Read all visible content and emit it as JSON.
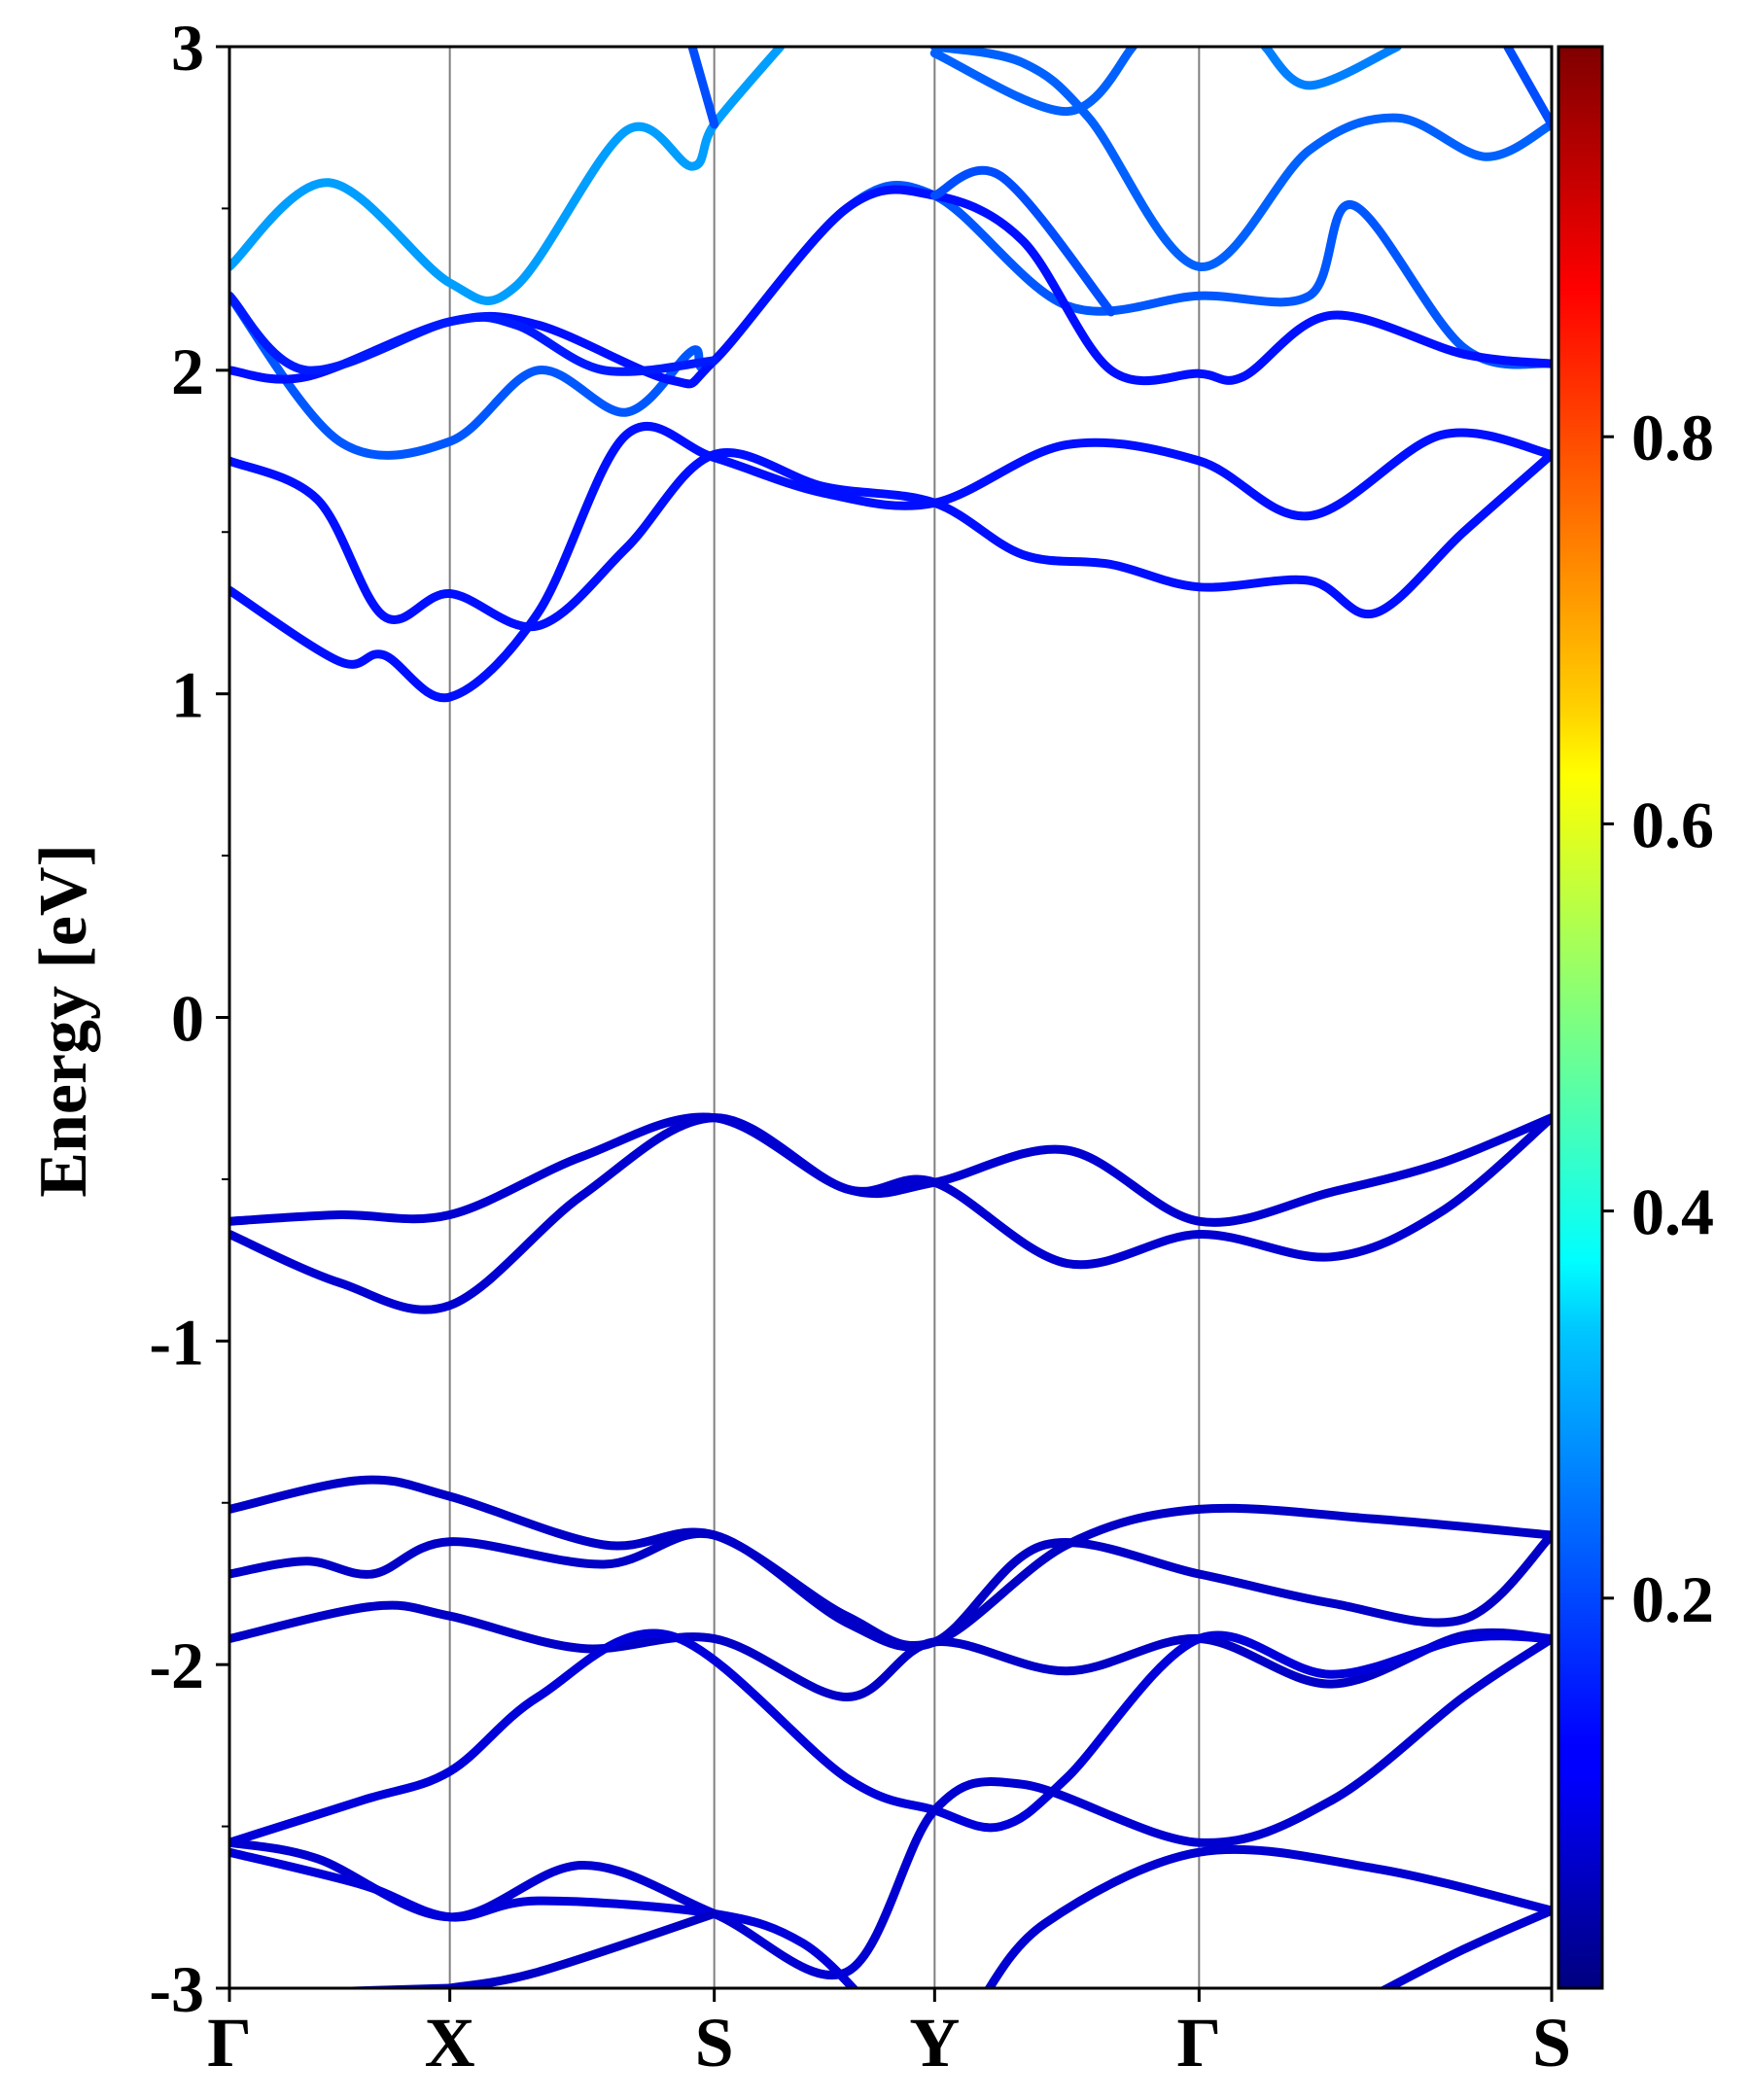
{
  "chart_data": {
    "type": "line",
    "ylabel": "Energy [eV]",
    "xlabel": "",
    "ylim": [
      -3,
      3
    ],
    "grid": false,
    "k_points": [
      {
        "label": "Γ",
        "k": 0
      },
      {
        "label": "X",
        "k": 1
      },
      {
        "label": "S",
        "k": 2.2
      },
      {
        "label": "Y",
        "k": 3.2
      },
      {
        "label": "Γ",
        "k": 4.4
      },
      {
        "label": "S",
        "k": 6
      }
    ],
    "y_ticks": [
      {
        "value": 3,
        "label": "3"
      },
      {
        "value": 2,
        "label": "2"
      },
      {
        "value": 1,
        "label": "1"
      },
      {
        "value": 0,
        "label": "0"
      },
      {
        "value": -1,
        "label": "-1"
      },
      {
        "value": -2,
        "label": "-2"
      },
      {
        "value": -3,
        "label": "-3"
      }
    ],
    "colorbar": {
      "colormap": "jet",
      "range": [
        0,
        1
      ],
      "ticks": [
        {
          "value": 0.2,
          "label": "0.2"
        },
        {
          "value": 0.4,
          "label": "0.4"
        },
        {
          "value": 0.6,
          "label": "0.6"
        },
        {
          "value": 0.8,
          "label": "0.8"
        }
      ]
    },
    "series": [
      {
        "weight": 0.08,
        "points": [
          [
            0,
            -0.63
          ],
          [
            0.5,
            -0.61
          ],
          [
            1,
            -0.61
          ],
          [
            1.6,
            -0.43
          ],
          [
            2.2,
            -0.31
          ],
          [
            2.8,
            -0.53
          ],
          [
            3.2,
            -0.51
          ],
          [
            3.8,
            -0.41
          ],
          [
            4.4,
            -0.63
          ],
          [
            5,
            -0.54
          ],
          [
            5.5,
            -0.45
          ],
          [
            6,
            -0.31
          ]
        ]
      },
      {
        "weight": 0.08,
        "points": [
          [
            0,
            -0.67
          ],
          [
            0.5,
            -0.82
          ],
          [
            1,
            -0.89
          ],
          [
            1.6,
            -0.55
          ],
          [
            2.2,
            -0.31
          ],
          [
            2.8,
            -0.53
          ],
          [
            3.2,
            -0.51
          ],
          [
            3.8,
            -0.76
          ],
          [
            4.4,
            -0.67
          ],
          [
            5,
            -0.74
          ],
          [
            5.5,
            -0.6
          ],
          [
            6,
            -0.31
          ]
        ]
      },
      {
        "weight": 0.07,
        "points": [
          [
            0,
            -1.52
          ],
          [
            0.6,
            -1.43
          ],
          [
            1,
            -1.48
          ],
          [
            1.7,
            -1.63
          ],
          [
            2.2,
            -1.6
          ],
          [
            2.8,
            -1.85
          ],
          [
            3.2,
            -1.93
          ],
          [
            3.8,
            -1.63
          ],
          [
            4.4,
            -1.52
          ],
          [
            5.2,
            -1.55
          ],
          [
            6,
            -1.6
          ]
        ]
      },
      {
        "weight": 0.07,
        "points": [
          [
            0,
            -1.72
          ],
          [
            0.35,
            -1.68
          ],
          [
            0.65,
            -1.72
          ],
          [
            1,
            -1.62
          ],
          [
            1.7,
            -1.69
          ],
          [
            2.2,
            -1.6
          ],
          [
            2.8,
            -1.87
          ],
          [
            3.2,
            -1.93
          ],
          [
            3.7,
            -1.63
          ],
          [
            4.4,
            -1.72
          ],
          [
            5,
            -1.81
          ],
          [
            5.6,
            -1.86
          ],
          [
            6,
            -1.6
          ]
        ]
      },
      {
        "weight": 0.07,
        "points": [
          [
            0,
            -1.92
          ],
          [
            0.65,
            -1.82
          ],
          [
            1,
            -1.85
          ],
          [
            1.6,
            -1.95
          ],
          [
            2.2,
            -1.92
          ],
          [
            2.8,
            -2.1
          ],
          [
            3.2,
            -1.93
          ],
          [
            3.8,
            -2.02
          ],
          [
            4.4,
            -1.92
          ],
          [
            5,
            -2.06
          ],
          [
            5.6,
            -1.91
          ],
          [
            6,
            -1.92
          ]
        ]
      },
      {
        "weight": 0.09,
        "points": [
          [
            0,
            -2.55
          ],
          [
            0.6,
            -2.42
          ],
          [
            1,
            -2.33
          ],
          [
            1.4,
            -2.1
          ],
          [
            2,
            -1.91
          ],
          [
            2.8,
            -2.35
          ],
          [
            3.2,
            -2.45
          ],
          [
            3.5,
            -2.5
          ],
          [
            3.8,
            -2.35
          ],
          [
            4.4,
            -1.92
          ],
          [
            5,
            -2.03
          ],
          [
            5.6,
            -1.92
          ],
          [
            6,
            -1.92
          ]
        ]
      },
      {
        "weight": 0.08,
        "points": [
          [
            0,
            -2.55
          ],
          [
            0.4,
            -2.6
          ],
          [
            1,
            -2.78
          ],
          [
            1.6,
            -2.62
          ],
          [
            2.2,
            -2.77
          ],
          [
            2.8,
            -2.95
          ],
          [
            3.2,
            -2.45
          ],
          [
            3.6,
            -2.37
          ],
          [
            4.4,
            -2.55
          ],
          [
            5,
            -2.42
          ],
          [
            5.6,
            -2.1
          ],
          [
            6,
            -1.92
          ]
        ]
      },
      {
        "weight": 0.09,
        "points": [
          [
            0,
            -2.58
          ],
          [
            0.6,
            -2.68
          ],
          [
            1,
            -2.78
          ],
          [
            1.4,
            -2.73
          ],
          [
            2.2,
            -2.77
          ],
          [
            2.6,
            -2.86
          ],
          [
            2.9,
            -3.05
          ]
        ]
      },
      {
        "weight": 0.08,
        "points": [
          [
            3.4,
            -3.05
          ],
          [
            3.7,
            -2.8
          ],
          [
            4.4,
            -2.58
          ],
          [
            5.2,
            -2.63
          ],
          [
            6,
            -2.76
          ]
        ]
      },
      {
        "weight": 0.07,
        "points": [
          [
            1,
            -3.0
          ],
          [
            1.4,
            -2.95
          ],
          [
            2.2,
            -2.77
          ]
        ]
      },
      {
        "weight": 0.07,
        "points": [
          [
            0,
            -3.02
          ],
          [
            1,
            -3.0
          ]
        ]
      },
      {
        "weight": 0.08,
        "points": [
          [
            5.2,
            -3.02
          ],
          [
            5.6,
            -2.88
          ],
          [
            6,
            -2.76
          ]
        ]
      },
      {
        "weight": 0.14,
        "points": [
          [
            0,
            1.32
          ],
          [
            0.5,
            1.1
          ],
          [
            0.7,
            1.12
          ],
          [
            1,
            0.99
          ],
          [
            1.4,
            1.25
          ],
          [
            1.8,
            1.8
          ],
          [
            2.2,
            1.73
          ],
          [
            2.7,
            1.62
          ],
          [
            3.2,
            1.59
          ],
          [
            3.8,
            1.77
          ],
          [
            4.4,
            1.72
          ],
          [
            4.9,
            1.55
          ],
          [
            5.5,
            1.8
          ],
          [
            6,
            1.74
          ]
        ]
      },
      {
        "weight": 0.14,
        "points": [
          [
            0,
            1.72
          ],
          [
            0.4,
            1.6
          ],
          [
            0.7,
            1.24
          ],
          [
            1,
            1.31
          ],
          [
            1.4,
            1.21
          ],
          [
            1.8,
            1.45
          ],
          [
            2.2,
            1.74
          ],
          [
            2.7,
            1.64
          ],
          [
            3.2,
            1.59
          ],
          [
            3.6,
            1.43
          ],
          [
            4,
            1.4
          ],
          [
            4.4,
            1.33
          ],
          [
            4.9,
            1.35
          ],
          [
            5.2,
            1.25
          ],
          [
            5.6,
            1.5
          ],
          [
            6,
            1.74
          ]
        ]
      },
      {
        "weight": 0.21,
        "points": [
          [
            0,
            2.23
          ],
          [
            0.5,
            1.78
          ],
          [
            1,
            1.78
          ],
          [
            1.4,
            2.0
          ],
          [
            1.8,
            1.87
          ],
          [
            2.1,
            2.06
          ],
          [
            2.2,
            2.03
          ],
          [
            2.8,
            2.5
          ],
          [
            3.2,
            2.54
          ],
          [
            3.8,
            2.2
          ],
          [
            4.4,
            2.23
          ],
          [
            4.9,
            2.23
          ],
          [
            5.1,
            2.51
          ],
          [
            5.6,
            2.07
          ],
          [
            6,
            2.02
          ]
        ]
      },
      {
        "weight": 0.14,
        "points": [
          [
            0,
            2.0
          ],
          [
            0.35,
            1.98
          ],
          [
            1,
            2.15
          ],
          [
            1.4,
            2.14
          ],
          [
            2,
            1.97
          ],
          [
            2.2,
            2.03
          ],
          [
            2.8,
            2.5
          ],
          [
            3.2,
            2.54
          ],
          [
            3.6,
            2.4
          ],
          [
            4,
            2.0
          ],
          [
            4.4,
            1.99
          ],
          [
            4.6,
            1.98
          ],
          [
            5,
            2.17
          ],
          [
            5.6,
            2.05
          ],
          [
            6,
            2.02
          ]
        ]
      },
      {
        "weight": 0.15,
        "points": [
          [
            0,
            2.23
          ],
          [
            0.35,
            2.0
          ],
          [
            1,
            2.15
          ],
          [
            1.3,
            2.14
          ],
          [
            1.7,
            2.0
          ],
          [
            2.2,
            2.03
          ]
        ]
      },
      {
        "weight": 0.28,
        "points": [
          [
            0,
            2.32
          ],
          [
            0.45,
            2.58
          ],
          [
            1,
            2.27
          ],
          [
            1.3,
            2.26
          ],
          [
            1.8,
            2.74
          ],
          [
            2.1,
            2.63
          ],
          [
            2.2,
            2.76
          ],
          [
            2.5,
            3.0
          ]
        ]
      },
      {
        "weight": 0.2,
        "points": [
          [
            2.1,
            3.0
          ],
          [
            2.2,
            2.76
          ]
        ]
      },
      {
        "weight": 0.22,
        "points": [
          [
            3.2,
            2.98
          ],
          [
            3.8,
            2.8
          ],
          [
            4.1,
            3.0
          ]
        ]
      },
      {
        "weight": 0.22,
        "points": [
          [
            3.2,
            3.0
          ],
          [
            3.6,
            2.95
          ],
          [
            3.9,
            2.78
          ],
          [
            4.4,
            2.32
          ],
          [
            4.9,
            2.68
          ],
          [
            5.3,
            2.78
          ],
          [
            5.7,
            2.66
          ],
          [
            6,
            2.76
          ]
        ]
      },
      {
        "weight": 0.2,
        "points": [
          [
            3.2,
            2.54
          ],
          [
            3.5,
            2.6
          ],
          [
            4.0,
            2.18
          ]
        ]
      },
      {
        "weight": 0.25,
        "points": [
          [
            4.7,
            3.0
          ],
          [
            4.9,
            2.88
          ],
          [
            5.3,
            3.0
          ]
        ]
      },
      {
        "weight": 0.2,
        "points": [
          [
            5.8,
            3.0
          ],
          [
            6,
            2.76
          ]
        ]
      }
    ]
  }
}
